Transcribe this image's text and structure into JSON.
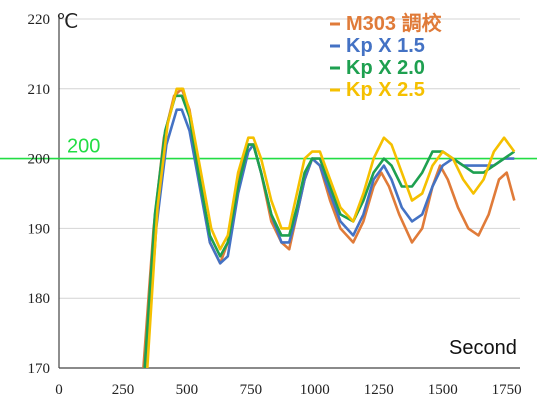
{
  "chart_data": {
    "type": "line",
    "unit_label": "℃",
    "xlabel": "Second",
    "ylabel": "",
    "xlim": [
      0,
      1800
    ],
    "ylim": [
      170,
      220
    ],
    "x_ticks": [
      0,
      250,
      500,
      750,
      1000,
      1250,
      1500,
      1750
    ],
    "y_ticks": [
      170,
      180,
      190,
      200,
      210,
      220
    ],
    "grid": "horizontal",
    "legend_position": "top-right",
    "reference_line": {
      "value": 200,
      "label": "200",
      "color": "#22dd44"
    },
    "series": [
      {
        "name": "M303 調校",
        "color": "#e07b39",
        "points": [
          [
            330,
            170
          ],
          [
            370,
            190
          ],
          [
            410,
            203
          ],
          [
            450,
            209
          ],
          [
            480,
            210
          ],
          [
            510,
            207
          ],
          [
            550,
            198
          ],
          [
            590,
            188
          ],
          [
            630,
            185
          ],
          [
            660,
            188
          ],
          [
            700,
            197
          ],
          [
            740,
            202
          ],
          [
            760,
            202
          ],
          [
            790,
            198
          ],
          [
            830,
            191
          ],
          [
            870,
            188
          ],
          [
            900,
            187
          ],
          [
            930,
            192
          ],
          [
            960,
            197
          ],
          [
            990,
            200
          ],
          [
            1020,
            199
          ],
          [
            1060,
            194
          ],
          [
            1100,
            190
          ],
          [
            1150,
            188
          ],
          [
            1190,
            191
          ],
          [
            1230,
            196
          ],
          [
            1260,
            198
          ],
          [
            1290,
            196
          ],
          [
            1330,
            192
          ],
          [
            1380,
            188
          ],
          [
            1420,
            190
          ],
          [
            1460,
            196
          ],
          [
            1490,
            199
          ],
          [
            1520,
            197
          ],
          [
            1560,
            193
          ],
          [
            1600,
            190
          ],
          [
            1640,
            189
          ],
          [
            1680,
            192
          ],
          [
            1720,
            197
          ],
          [
            1750,
            198
          ],
          [
            1780,
            194
          ]
        ]
      },
      {
        "name": "Kp X 1.5",
        "color": "#4472c4",
        "points": [
          [
            340,
            170
          ],
          [
            380,
            190
          ],
          [
            420,
            202
          ],
          [
            460,
            207
          ],
          [
            480,
            207
          ],
          [
            510,
            204
          ],
          [
            550,
            196
          ],
          [
            590,
            188
          ],
          [
            630,
            185
          ],
          [
            660,
            186
          ],
          [
            700,
            195
          ],
          [
            740,
            201
          ],
          [
            760,
            202
          ],
          [
            790,
            198
          ],
          [
            830,
            192
          ],
          [
            870,
            188
          ],
          [
            900,
            188
          ],
          [
            930,
            192
          ],
          [
            960,
            197
          ],
          [
            990,
            200
          ],
          [
            1020,
            199
          ],
          [
            1060,
            195
          ],
          [
            1100,
            191
          ],
          [
            1150,
            189
          ],
          [
            1190,
            192
          ],
          [
            1230,
            197
          ],
          [
            1270,
            199
          ],
          [
            1300,
            197
          ],
          [
            1340,
            193
          ],
          [
            1380,
            191
          ],
          [
            1420,
            192
          ],
          [
            1460,
            196
          ],
          [
            1500,
            199
          ],
          [
            1540,
            200
          ],
          [
            1580,
            199
          ],
          [
            1620,
            199
          ],
          [
            1660,
            199
          ],
          [
            1700,
            199
          ],
          [
            1740,
            200
          ],
          [
            1780,
            200
          ]
        ]
      },
      {
        "name": "Kp X 2.0",
        "color": "#1ea050",
        "points": [
          [
            335,
            170
          ],
          [
            375,
            192
          ],
          [
            415,
            204
          ],
          [
            455,
            209
          ],
          [
            480,
            209
          ],
          [
            510,
            206
          ],
          [
            550,
            197
          ],
          [
            590,
            189
          ],
          [
            630,
            186
          ],
          [
            660,
            188
          ],
          [
            700,
            196
          ],
          [
            740,
            202
          ],
          [
            760,
            202
          ],
          [
            790,
            198
          ],
          [
            830,
            192
          ],
          [
            870,
            189
          ],
          [
            900,
            189
          ],
          [
            930,
            193
          ],
          [
            960,
            198
          ],
          [
            990,
            200
          ],
          [
            1020,
            200
          ],
          [
            1060,
            196
          ],
          [
            1100,
            192
          ],
          [
            1150,
            191
          ],
          [
            1190,
            194
          ],
          [
            1230,
            198
          ],
          [
            1270,
            200
          ],
          [
            1300,
            199
          ],
          [
            1340,
            196
          ],
          [
            1380,
            196
          ],
          [
            1420,
            198
          ],
          [
            1460,
            201
          ],
          [
            1500,
            201
          ],
          [
            1540,
            200
          ],
          [
            1580,
            199
          ],
          [
            1620,
            198
          ],
          [
            1660,
            198
          ],
          [
            1700,
            199
          ],
          [
            1740,
            200
          ],
          [
            1780,
            201
          ]
        ]
      },
      {
        "name": "Kp X 2.5",
        "color": "#f5c000",
        "points": [
          [
            345,
            170
          ],
          [
            385,
            193
          ],
          [
            425,
            205
          ],
          [
            460,
            210
          ],
          [
            485,
            210
          ],
          [
            515,
            206
          ],
          [
            555,
            198
          ],
          [
            595,
            190
          ],
          [
            630,
            187
          ],
          [
            660,
            189
          ],
          [
            700,
            198
          ],
          [
            740,
            203
          ],
          [
            760,
            203
          ],
          [
            790,
            200
          ],
          [
            830,
            194
          ],
          [
            870,
            190
          ],
          [
            900,
            190
          ],
          [
            930,
            195
          ],
          [
            960,
            200
          ],
          [
            990,
            201
          ],
          [
            1020,
            201
          ],
          [
            1060,
            197
          ],
          [
            1100,
            193
          ],
          [
            1150,
            191
          ],
          [
            1190,
            195
          ],
          [
            1230,
            200
          ],
          [
            1270,
            203
          ],
          [
            1300,
            202
          ],
          [
            1340,
            198
          ],
          [
            1380,
            194
          ],
          [
            1420,
            195
          ],
          [
            1460,
            199
          ],
          [
            1500,
            201
          ],
          [
            1540,
            200
          ],
          [
            1580,
            197
          ],
          [
            1620,
            195
          ],
          [
            1660,
            197
          ],
          [
            1700,
            201
          ],
          [
            1740,
            203
          ],
          [
            1780,
            201
          ]
        ]
      }
    ]
  }
}
